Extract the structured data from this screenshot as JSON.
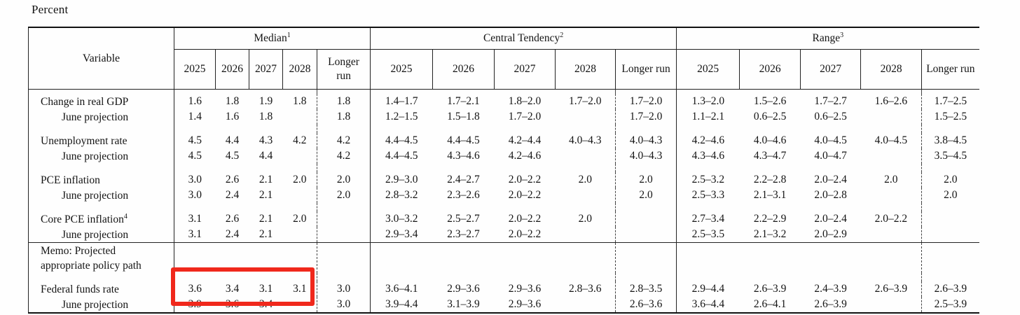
{
  "page": {
    "title": "Percent"
  },
  "highlight": {
    "color": "#f0281c"
  },
  "table": {
    "variable_header": "Variable",
    "sections": [
      {
        "label": "Median",
        "sup": "1"
      },
      {
        "label": "Central Tendency",
        "sup": "2"
      },
      {
        "label": "Range",
        "sup": "3"
      }
    ],
    "year_columns": [
      "2025",
      "2026",
      "2027",
      "2028",
      "Longer run"
    ],
    "rows": [
      {
        "type": "pad"
      },
      {
        "type": "data",
        "label": "Change in real GDP",
        "indent": false,
        "median": [
          "1.6",
          "1.8",
          "1.9",
          "1.8",
          "1.8"
        ],
        "ct": [
          "1.4–1.7",
          "1.7–2.1",
          "1.8–2.0",
          "1.7–2.0",
          "1.7–2.0"
        ],
        "range": [
          "1.3–2.0",
          "1.5–2.6",
          "1.7–2.7",
          "1.6–2.6",
          "1.7–2.5"
        ]
      },
      {
        "type": "data",
        "label": "June projection",
        "indent": true,
        "median": [
          "1.4",
          "1.6",
          "1.8",
          "",
          "1.8"
        ],
        "ct": [
          "1.2–1.5",
          "1.5–1.8",
          "1.7–2.0",
          "",
          "1.7–2.0"
        ],
        "range": [
          "1.1–2.1",
          "0.6–2.5",
          "0.6–2.5",
          "",
          "1.5–2.5"
        ]
      },
      {
        "type": "gap"
      },
      {
        "type": "data",
        "label": "Unemployment rate",
        "indent": false,
        "median": [
          "4.5",
          "4.4",
          "4.3",
          "4.2",
          "4.2"
        ],
        "ct": [
          "4.4–4.5",
          "4.4–4.5",
          "4.2–4.4",
          "4.0–4.3",
          "4.0–4.3"
        ],
        "range": [
          "4.2–4.6",
          "4.0–4.6",
          "4.0–4.5",
          "4.0–4.5",
          "3.8–4.5"
        ]
      },
      {
        "type": "data",
        "label": "June projection",
        "indent": true,
        "median": [
          "4.5",
          "4.5",
          "4.4",
          "",
          "4.2"
        ],
        "ct": [
          "4.4–4.5",
          "4.3–4.6",
          "4.2–4.6",
          "",
          "4.0–4.3"
        ],
        "range": [
          "4.3–4.6",
          "4.3–4.7",
          "4.0–4.7",
          "",
          "3.5–4.5"
        ]
      },
      {
        "type": "gap"
      },
      {
        "type": "data",
        "label": "PCE inflation",
        "indent": false,
        "median": [
          "3.0",
          "2.6",
          "2.1",
          "2.0",
          "2.0"
        ],
        "ct": [
          "2.9–3.0",
          "2.4–2.7",
          "2.0–2.2",
          "2.0",
          "2.0"
        ],
        "range": [
          "2.5–3.2",
          "2.2–2.8",
          "2.0–2.4",
          "2.0",
          "2.0"
        ]
      },
      {
        "type": "data",
        "label": "June projection",
        "indent": true,
        "median": [
          "3.0",
          "2.4",
          "2.1",
          "",
          "2.0"
        ],
        "ct": [
          "2.8–3.2",
          "2.3–2.6",
          "2.0–2.2",
          "",
          "2.0"
        ],
        "range": [
          "2.5–3.3",
          "2.1–3.1",
          "2.0–2.8",
          "",
          "2.0"
        ]
      },
      {
        "type": "gap"
      },
      {
        "type": "data",
        "label": "Core PCE inflation",
        "label_sup": "4",
        "indent": false,
        "median": [
          "3.1",
          "2.6",
          "2.1",
          "2.0",
          ""
        ],
        "ct": [
          "3.0–3.2",
          "2.5–2.7",
          "2.0–2.2",
          "2.0",
          ""
        ],
        "range": [
          "2.7–3.4",
          "2.2–2.9",
          "2.0–2.4",
          "2.0–2.2",
          ""
        ]
      },
      {
        "type": "data",
        "label": "June projection",
        "indent": true,
        "median": [
          "3.1",
          "2.4",
          "2.1",
          "",
          ""
        ],
        "ct": [
          "2.9–3.4",
          "2.3–2.7",
          "2.0–2.2",
          "",
          ""
        ],
        "range": [
          "2.5–3.5",
          "2.1–3.2",
          "2.0–2.9",
          "",
          ""
        ]
      },
      {
        "type": "memo",
        "label_lines": [
          "Memo: Projected",
          "appropriate policy path"
        ]
      },
      {
        "type": "gap"
      },
      {
        "type": "data",
        "label": "Federal funds rate",
        "indent": false,
        "highlighted": true,
        "median": [
          "3.6",
          "3.4",
          "3.1",
          "3.1",
          "3.0"
        ],
        "ct": [
          "3.6–4.1",
          "2.9–3.6",
          "2.9–3.6",
          "2.8–3.6",
          "2.8–3.5"
        ],
        "range": [
          "2.9–4.4",
          "2.6–3.9",
          "2.4–3.9",
          "2.6–3.9",
          "2.6–3.9"
        ]
      },
      {
        "type": "data",
        "label": "June projection",
        "indent": true,
        "highlighted": true,
        "median": [
          "3.9",
          "3.6",
          "3.4",
          "",
          "3.0"
        ],
        "ct": [
          "3.9–4.4",
          "3.1–3.9",
          "2.9–3.6",
          "",
          "2.6–3.6"
        ],
        "range": [
          "3.6–4.4",
          "2.6–4.1",
          "2.6–3.9",
          "",
          "2.5–3.9"
        ]
      }
    ]
  }
}
